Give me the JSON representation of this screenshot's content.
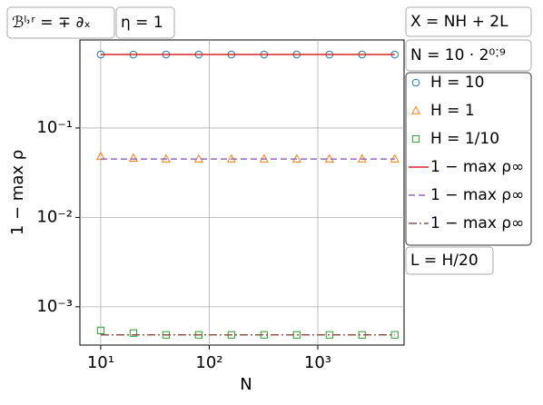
{
  "chart_data": {
    "type": "line",
    "x_label": "N",
    "y_label": "1 − max ρ",
    "annotations": [
      "ℬˡ˒ʳ = ∓ ∂ₓ",
      "η = 1",
      "X = NH + 2L",
      "N = 10 · 2⁰˸⁹",
      "L = H/20"
    ],
    "x": [
      10,
      20,
      40,
      80,
      160,
      320,
      640,
      1280,
      2560,
      5120
    ],
    "series": [
      {
        "name": "H = 10",
        "color": "#1f77b4",
        "marker": "circle",
        "values": [
          0.664,
          0.664,
          0.664,
          0.664,
          0.664,
          0.664,
          0.664,
          0.664,
          0.664,
          0.664
        ]
      },
      {
        "name": "H = 1",
        "color": "#ff7f0e",
        "marker": "triangle",
        "values": [
          0.048,
          0.046,
          0.045,
          0.045,
          0.045,
          0.045,
          0.045,
          0.045,
          0.045,
          0.045
        ]
      },
      {
        "name": "H = 1/10",
        "color": "#2ca02c",
        "marker": "square",
        "values": [
          0.000544,
          0.000508,
          0.000485,
          0.000485,
          0.000485,
          0.000485,
          0.000485,
          0.000485,
          0.000485,
          0.000485
        ]
      },
      {
        "name": "1 − max ρ∞",
        "color": "#d62728",
        "linestyle": "solid",
        "values": [
          0.664,
          0.664,
          0.664,
          0.664,
          0.664,
          0.664,
          0.664,
          0.664,
          0.664,
          0.664
        ]
      },
      {
        "name": "1 − max ρ∞",
        "color": "#9467bd",
        "linestyle": "dashed",
        "values": [
          0.045,
          0.045,
          0.045,
          0.045,
          0.045,
          0.045,
          0.045,
          0.045,
          0.045,
          0.045
        ]
      },
      {
        "name": "1 − max ρ∞",
        "color": "#8c564b",
        "linestyle": "dashdot",
        "values": [
          0.000485,
          0.000485,
          0.000485,
          0.000485,
          0.000485,
          0.000485,
          0.000485,
          0.000485,
          0.000485,
          0.000485
        ]
      }
    ],
    "xscale": "log",
    "yscale": "log",
    "grid": true,
    "xlim": [
      6.43,
      6240
    ],
    "ylim": [
      0.000373,
      0.966
    ],
    "xticks": [
      {
        "value": 10,
        "label": "10¹"
      },
      {
        "value": 100,
        "label": "10²"
      },
      {
        "value": 1000,
        "label": "10³"
      }
    ],
    "yticks": [
      {
        "value": 0.001,
        "label": "10⁻³"
      },
      {
        "value": 0.01,
        "label": "10⁻²"
      },
      {
        "value": 0.1,
        "label": "10⁻¹"
      }
    ]
  }
}
